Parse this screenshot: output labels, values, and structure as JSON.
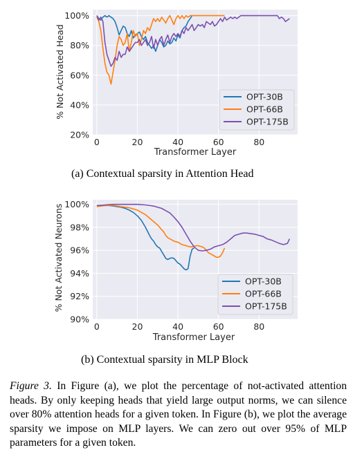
{
  "figure_a": {
    "subcaption": "(a)  Contextual sparsity in Attention Head"
  },
  "figure_b": {
    "subcaption": "(b)  Contextual sparsity in MLP Block"
  },
  "caption": {
    "figure_label": "Figure 3.",
    "text": " In Figure (a), we plot the percentage of not-activated attention heads. By only keeping heads that yield large output norms, we can silence over 80% attention heads for a given token. In Figure (b), we plot the average sparsity we impose on MLP layers. We can zero out over 95% of MLP parameters for a given token."
  },
  "colors": {
    "OPT-30B": "#1f77b4",
    "OPT-66B": "#ff7f0e",
    "OPT-175B": "#7b4fb0",
    "plot_bg": "#eaeaf2",
    "grid": "#ffffff"
  },
  "chart_data": [
    {
      "type": "line",
      "xlabel": "Transformer Layer",
      "ylabel": "% Not Activated Head",
      "xlim": [
        -2,
        99
      ],
      "ylim": [
        20,
        104
      ],
      "xticks": [
        0,
        20,
        40,
        60,
        80
      ],
      "yticks": [
        20,
        40,
        60,
        80,
        100
      ],
      "ytick_labels": [
        "20%",
        "40%",
        "60%",
        "80%",
        "100%"
      ],
      "legend_position": "lower-right",
      "grid": true,
      "series": [
        {
          "name": "OPT-30B",
          "x": [
            0,
            1,
            2,
            3,
            4,
            5,
            6,
            7,
            8,
            9,
            10,
            11,
            12,
            13,
            14,
            15,
            16,
            17,
            18,
            19,
            20,
            21,
            22,
            23,
            24,
            25,
            26,
            27,
            28,
            29,
            30,
            31,
            32,
            33,
            34,
            35,
            36,
            37,
            38,
            39,
            40,
            41,
            42,
            43,
            44,
            45,
            46,
            47
          ],
          "y": [
            100,
            98,
            97,
            99,
            100,
            99,
            100,
            99,
            98,
            96,
            92,
            87,
            90,
            93,
            92,
            88,
            86,
            90,
            85,
            87,
            88,
            89,
            86,
            84,
            86,
            82,
            80,
            78,
            80,
            76,
            80,
            84,
            82,
            79,
            80,
            83,
            81,
            82,
            85,
            83,
            87,
            85,
            90,
            92,
            93,
            96,
            98,
            100
          ]
        },
        {
          "name": "OPT-66B",
          "x": [
            0,
            1,
            2,
            3,
            4,
            5,
            6,
            7,
            8,
            9,
            10,
            11,
            12,
            13,
            14,
            15,
            16,
            17,
            18,
            19,
            20,
            21,
            22,
            23,
            24,
            25,
            26,
            27,
            28,
            29,
            30,
            31,
            32,
            33,
            34,
            35,
            36,
            37,
            38,
            39,
            40,
            41,
            42,
            43,
            44,
            45,
            46,
            47,
            48,
            49,
            50,
            51,
            52,
            53,
            54,
            55,
            56,
            57,
            58,
            59,
            60,
            61,
            62,
            63
          ],
          "y": [
            99,
            96,
            90,
            78,
            68,
            62,
            60,
            54,
            62,
            70,
            80,
            86,
            84,
            80,
            82,
            88,
            76,
            82,
            90,
            86,
            88,
            80,
            84,
            90,
            88,
            92,
            90,
            94,
            98,
            96,
            98,
            96,
            99,
            97,
            95,
            98,
            100,
            97,
            94,
            98,
            100,
            98,
            100,
            98,
            100,
            99,
            100,
            100,
            100,
            100,
            100,
            100,
            100,
            100,
            100,
            100,
            100,
            100,
            100,
            100,
            100,
            100,
            100,
            100
          ]
        },
        {
          "name": "OPT-175B",
          "x": [
            0,
            1,
            2,
            3,
            4,
            5,
            6,
            7,
            8,
            9,
            10,
            11,
            12,
            13,
            14,
            15,
            16,
            17,
            18,
            19,
            20,
            21,
            22,
            23,
            24,
            25,
            26,
            27,
            28,
            29,
            30,
            31,
            32,
            33,
            34,
            35,
            36,
            37,
            38,
            39,
            40,
            41,
            42,
            43,
            44,
            45,
            46,
            47,
            48,
            49,
            50,
            51,
            52,
            53,
            54,
            55,
            56,
            57,
            58,
            59,
            60,
            61,
            62,
            63,
            64,
            65,
            66,
            67,
            68,
            69,
            70,
            71,
            72,
            73,
            74,
            75,
            76,
            77,
            78,
            79,
            80,
            81,
            82,
            83,
            84,
            85,
            86,
            87,
            88,
            89,
            90,
            91,
            92,
            93,
            94,
            95
          ],
          "y": [
            100,
            97,
            99,
            96,
            82,
            74,
            70,
            66,
            68,
            72,
            70,
            76,
            72,
            74,
            74,
            79,
            76,
            78,
            80,
            82,
            82,
            84,
            80,
            82,
            84,
            80,
            82,
            86,
            78,
            84,
            80,
            84,
            86,
            80,
            84,
            87,
            82,
            86,
            88,
            86,
            88,
            86,
            90,
            88,
            92,
            90,
            92,
            94,
            90,
            92,
            94,
            93,
            94,
            92,
            96,
            95,
            94,
            96,
            93,
            94,
            96,
            98,
            96,
            99,
            97,
            98,
            99,
            98,
            99,
            98,
            99,
            100,
            100,
            100,
            100,
            100,
            100,
            100,
            100,
            100,
            100,
            100,
            100,
            100,
            100,
            100,
            100,
            100,
            100,
            100,
            98,
            99,
            98,
            96,
            97,
            98
          ]
        }
      ]
    },
    {
      "type": "line",
      "xlabel": "Transformer Layer",
      "ylabel": "% Not Activated Neurons",
      "xlim": [
        -2,
        99
      ],
      "ylim": [
        90,
        100.4
      ],
      "xticks": [
        0,
        20,
        40,
        60,
        80
      ],
      "yticks": [
        90,
        92,
        94,
        96,
        98,
        100
      ],
      "ytick_labels": [
        "90%",
        "92%",
        "94%",
        "96%",
        "98%",
        "100%"
      ],
      "legend_position": "lower-right",
      "grid": true,
      "series": [
        {
          "name": "OPT-30B",
          "x": [
            0,
            2,
            4,
            6,
            8,
            10,
            12,
            14,
            16,
            18,
            20,
            22,
            24,
            26,
            27,
            28,
            29,
            30,
            31,
            32,
            33,
            34,
            35,
            36,
            37,
            38,
            39,
            40,
            41,
            42,
            43,
            44,
            45,
            46,
            47,
            48
          ],
          "y": [
            99.9,
            99.85,
            99.9,
            99.9,
            99.85,
            99.8,
            99.75,
            99.65,
            99.5,
            99.3,
            99.0,
            98.6,
            98.0,
            97.3,
            97.0,
            96.8,
            96.5,
            96.3,
            96.2,
            95.9,
            95.6,
            95.3,
            95.2,
            95.3,
            95.35,
            95.3,
            95.1,
            94.9,
            94.8,
            94.6,
            94.4,
            94.3,
            94.4,
            95.5,
            96.1,
            96.2
          ]
        },
        {
          "name": "OPT-66B",
          "x": [
            0,
            2,
            4,
            6,
            8,
            10,
            12,
            14,
            16,
            18,
            20,
            22,
            24,
            26,
            28,
            30,
            32,
            33,
            34,
            35,
            36,
            37,
            38,
            39,
            40,
            41,
            42,
            43,
            44,
            45,
            46,
            47,
            48,
            49,
            50,
            51,
            52,
            53,
            54,
            55,
            56,
            57,
            58,
            59,
            60,
            61,
            62,
            63
          ],
          "y": [
            99.8,
            99.85,
            99.9,
            99.9,
            99.9,
            99.85,
            99.8,
            99.75,
            99.7,
            99.6,
            99.5,
            99.3,
            99.1,
            98.8,
            98.5,
            98.2,
            97.8,
            97.6,
            97.3,
            97.1,
            97.0,
            96.9,
            96.8,
            96.75,
            96.7,
            96.6,
            96.5,
            96.45,
            96.4,
            96.35,
            96.3,
            96.3,
            96.35,
            96.4,
            96.4,
            96.35,
            96.3,
            96.2,
            96.0,
            95.8,
            95.7,
            95.6,
            95.5,
            95.4,
            95.4,
            95.5,
            95.8,
            96.2
          ]
        },
        {
          "name": "OPT-175B",
          "x": [
            0,
            4,
            8,
            12,
            16,
            20,
            24,
            28,
            32,
            34,
            36,
            38,
            40,
            42,
            44,
            46,
            48,
            50,
            52,
            54,
            56,
            58,
            60,
            62,
            64,
            66,
            68,
            70,
            72,
            74,
            76,
            78,
            80,
            82,
            84,
            86,
            88,
            90,
            92,
            94,
            95
          ],
          "y": [
            99.9,
            99.95,
            100,
            100,
            100,
            100,
            99.95,
            99.85,
            99.65,
            99.45,
            99.25,
            98.9,
            98.5,
            98.0,
            97.4,
            96.8,
            96.3,
            96.0,
            95.95,
            96.0,
            96.1,
            96.3,
            96.4,
            96.5,
            96.7,
            97.0,
            97.3,
            97.4,
            97.5,
            97.5,
            97.45,
            97.4,
            97.3,
            97.2,
            97.0,
            96.9,
            96.75,
            96.6,
            96.5,
            96.6,
            97.0
          ]
        }
      ]
    }
  ]
}
